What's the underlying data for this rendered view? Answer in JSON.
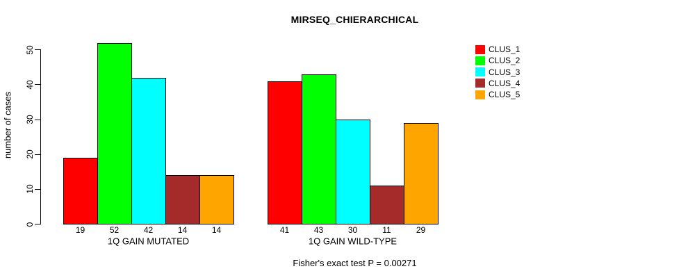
{
  "chart_data": {
    "type": "bar",
    "title": "MIRSEQ_CHIERARCHICAL",
    "ylabel": "number of cases",
    "xlabel": "",
    "subtitle": "Fisher's exact test P = 0.00271",
    "ylim": [
      0,
      50
    ],
    "yticks": [
      0,
      10,
      20,
      30,
      40,
      50
    ],
    "grid": false,
    "legend_position": "topright",
    "series": [
      {
        "name": "CLUS_1",
        "color": "#FF0000"
      },
      {
        "name": "CLUS_2",
        "color": "#00FF00"
      },
      {
        "name": "CLUS_3",
        "color": "#00FFFF"
      },
      {
        "name": "CLUS_4",
        "color": "#A52A2A"
      },
      {
        "name": "CLUS_5",
        "color": "#FFA500"
      }
    ],
    "groups": [
      {
        "label": "1Q GAIN MUTATED",
        "values": [
          19,
          52,
          42,
          14,
          14
        ]
      },
      {
        "label": "1Q GAIN WILD-TYPE",
        "values": [
          41,
          43,
          30,
          11,
          29
        ]
      }
    ]
  }
}
